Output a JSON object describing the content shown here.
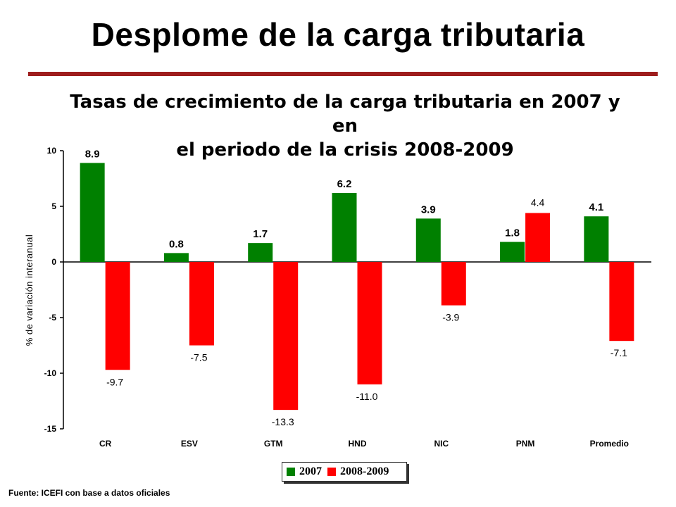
{
  "slide": {
    "title": "Desplome de la carga tributaria",
    "source": "Fuente: ICEFI con base a datos oficiales"
  },
  "chart_data": {
    "type": "bar",
    "title_lines": [
      "Tasas de crecimiento de la carga tributaria en 2007  y en",
      "el periodo de la crisis 2008-2009"
    ],
    "ylabel": "% de variación interanual",
    "ylim": [
      -15,
      10
    ],
    "yticks": [
      10,
      5,
      0,
      -5,
      -10,
      -15
    ],
    "categories": [
      "CR",
      "ESV",
      "GTM",
      "HND",
      "NIC",
      "PNM",
      "Promedio"
    ],
    "series": [
      {
        "name": "2007",
        "color": "#008000",
        "values": [
          8.9,
          0.8,
          1.7,
          6.2,
          3.9,
          1.8,
          4.1
        ]
      },
      {
        "name": "2008-2009",
        "color": "#ff0000",
        "values": [
          -9.7,
          -7.5,
          -13.3,
          -11.0,
          -3.9,
          4.4,
          -7.1
        ]
      }
    ],
    "legend_position": "bottom-center",
    "grid": false
  }
}
